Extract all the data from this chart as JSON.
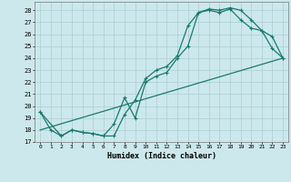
{
  "title": "",
  "xlabel": "Humidex (Indice chaleur)",
  "bg_color": "#cce8ec",
  "grid_color": "#aacdd4",
  "line_color": "#1a7a6e",
  "xlim": [
    -0.5,
    23.5
  ],
  "ylim": [
    17.0,
    28.7
  ],
  "yticks": [
    17,
    18,
    19,
    20,
    21,
    22,
    23,
    24,
    25,
    26,
    27,
    28
  ],
  "xticks": [
    0,
    1,
    2,
    3,
    4,
    5,
    6,
    7,
    8,
    9,
    10,
    11,
    12,
    13,
    14,
    15,
    16,
    17,
    18,
    19,
    20,
    21,
    22,
    23
  ],
  "series1_x": [
    0,
    1,
    2,
    3,
    4,
    5,
    6,
    7,
    8,
    9,
    10,
    11,
    12,
    13,
    14,
    15,
    16,
    17,
    18,
    19,
    20,
    21,
    22,
    23
  ],
  "series1_y": [
    19.5,
    18.0,
    17.5,
    18.0,
    17.8,
    17.7,
    17.5,
    17.5,
    19.3,
    20.5,
    22.3,
    23.0,
    23.3,
    24.2,
    26.7,
    27.8,
    28.0,
    27.8,
    28.1,
    27.2,
    26.5,
    26.3,
    24.8,
    24.0
  ],
  "series2_x": [
    0,
    2,
    3,
    4,
    5,
    6,
    7,
    8,
    9,
    10,
    11,
    12,
    13,
    14,
    15,
    16,
    17,
    18,
    19,
    20,
    21,
    22,
    23
  ],
  "series2_y": [
    19.5,
    17.5,
    18.0,
    17.8,
    17.7,
    17.5,
    18.5,
    20.7,
    19.0,
    22.0,
    22.5,
    22.8,
    24.0,
    25.0,
    27.8,
    28.1,
    28.0,
    28.2,
    28.0,
    27.2,
    26.3,
    25.8,
    24.0
  ],
  "series3_x": [
    0,
    23
  ],
  "series3_y": [
    18.0,
    24.0
  ],
  "markersize": 2.5,
  "linewidth": 0.9
}
